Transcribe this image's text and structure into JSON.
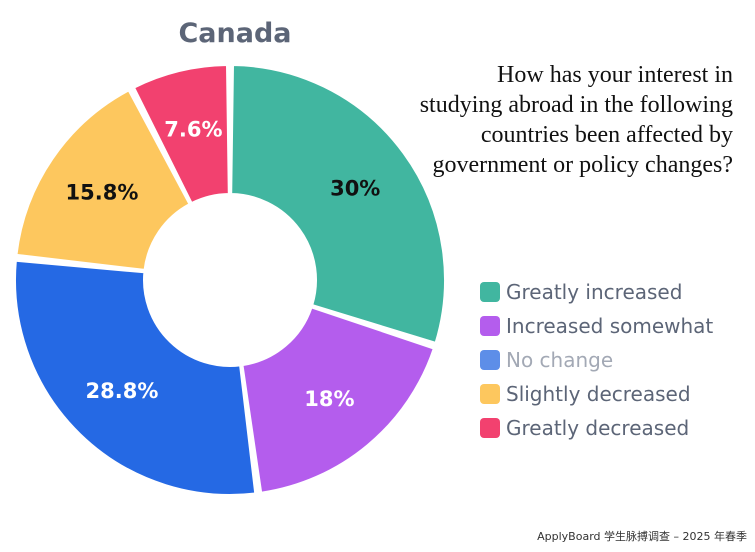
{
  "chart_data": {
    "type": "pie",
    "subtype": "donut",
    "title": "Canada",
    "subtitle": "How has your interest in studying abroad in the following countries been affected by government or policy changes?",
    "series": [
      {
        "name": "Greatly increased",
        "value": 30,
        "label": "30%",
        "color": "#41b6a0",
        "label_color": "#111111"
      },
      {
        "name": "Increased somewhat",
        "value": 18,
        "label": "18%",
        "color": "#b45ded",
        "label_color": "#ffffff"
      },
      {
        "name": "No change",
        "value": 28.8,
        "label": "28.8%",
        "color": "#2569e4",
        "label_color": "#ffffff"
      },
      {
        "name": "Slightly decreased",
        "value": 15.8,
        "label": "15.8%",
        "color": "#fdc75e",
        "label_color": "#111111"
      },
      {
        "name": "Greatly decreased",
        "value": 7.6,
        "label": "7.6%",
        "color": "#f2416f",
        "label_color": "#ffffff"
      }
    ],
    "legend": [
      {
        "label": "Greatly increased",
        "swatch": "#41b6a0",
        "muted": false
      },
      {
        "label": "Increased somewhat",
        "swatch": "#b45ded",
        "muted": false
      },
      {
        "label": "No change",
        "swatch": "#5d8ee8",
        "muted": true
      },
      {
        "label": "Slightly decreased",
        "swatch": "#fdc75e",
        "muted": false
      },
      {
        "label": "Greatly decreased",
        "swatch": "#f2416f",
        "muted": false
      }
    ],
    "legend_position": "right",
    "start": "top",
    "direction": "clockwise"
  },
  "footer": "ApplyBoard 学生脉搏调查 – 2025 年春季"
}
